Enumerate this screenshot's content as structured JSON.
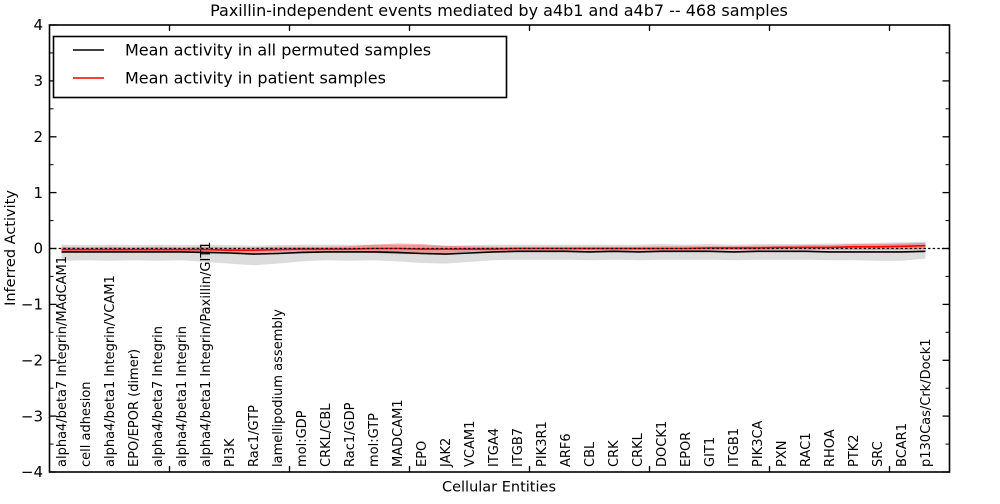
{
  "chart_data": {
    "type": "line",
    "title": "Paxillin-independent events mediated by a4b1 and a4b7 -- 468 samples",
    "xlabel": "Cellular Entities",
    "ylabel": "Inferred Activity",
    "ylim": [
      -4,
      4
    ],
    "xlim": [
      0,
      37.5
    ],
    "grid": false,
    "y_major_ticks": [
      4,
      3,
      2,
      1,
      0,
      -1,
      -2,
      -3,
      -4
    ],
    "y_minor_step": 0.5,
    "x_major_tick_positions": [
      5,
      10,
      15,
      20,
      25,
      30,
      35
    ],
    "zero_line": {
      "y": 0,
      "style": "dotted",
      "color": "#000000"
    },
    "colors": {
      "permuted_line": "#000000",
      "permuted_band": "#dcdcdc",
      "patient_line": "#ff0000",
      "patient_band": "rgba(255,0,0,0.30)",
      "frame": "#000000",
      "background": "#ffffff"
    },
    "legend": {
      "position": "upper left",
      "entries": [
        {
          "label": "Mean activity in all permuted samples",
          "color": "#000000"
        },
        {
          "label": "Mean activity in patient samples",
          "color": "#ff0000"
        }
      ]
    },
    "categories": [
      "alpha4/beta7 Integrin/MAdCAM1",
      "cell adhesion",
      "alpha4/beta1 Integrin/VCAM1",
      "EPO/EPOR (dimer)",
      "alpha4/beta7 Integrin",
      "alpha4/beta1 Integrin",
      "alpha4/beta1 Integrin/Paxillin/GIT1",
      "PI3K",
      "Rac1/GTP",
      "lamellipodium assembly",
      "mol:GDP",
      "CRKL/CBL",
      "Rac1/GDP",
      "mol:GTP",
      "MADCAM1",
      "EPO",
      "JAK2",
      "VCAM1",
      "ITGA4",
      "ITGB7",
      "PIK3R1",
      "ARF6",
      "CBL",
      "CRK",
      "CRKL",
      "DOCK1",
      "EPOR",
      "GIT1",
      "ITGB1",
      "PIK3CA",
      "PXN",
      "RAC1",
      "RHOA",
      "PTK2",
      "SRC",
      "BCAR1",
      "p130Cas/Crk/Dock1"
    ],
    "series": [
      {
        "name": "Mean activity in all permuted samples",
        "values": [
          -0.06,
          -0.06,
          -0.06,
          -0.06,
          -0.06,
          -0.06,
          -0.07,
          -0.08,
          -0.1,
          -0.09,
          -0.07,
          -0.06,
          -0.06,
          -0.06,
          -0.07,
          -0.09,
          -0.1,
          -0.08,
          -0.06,
          -0.05,
          -0.05,
          -0.05,
          -0.06,
          -0.05,
          -0.06,
          -0.05,
          -0.05,
          -0.05,
          -0.06,
          -0.05,
          -0.05,
          -0.05,
          -0.06,
          -0.06,
          -0.06,
          -0.06,
          -0.05
        ],
        "band_upper": [
          0.07,
          0.06,
          0.07,
          0.06,
          0.07,
          0.06,
          0.07,
          0.06,
          0.05,
          0.06,
          0.07,
          0.07,
          0.07,
          0.07,
          0.06,
          0.06,
          0.05,
          0.06,
          0.07,
          0.07,
          0.07,
          0.07,
          0.07,
          0.07,
          0.07,
          0.08,
          0.07,
          0.08,
          0.07,
          0.08,
          0.08,
          0.08,
          0.09,
          0.09,
          0.1,
          0.11,
          0.12
        ],
        "band_lower": [
          -0.22,
          -0.21,
          -0.22,
          -0.21,
          -0.22,
          -0.21,
          -0.24,
          -0.27,
          -0.3,
          -0.27,
          -0.23,
          -0.21,
          -0.22,
          -0.21,
          -0.23,
          -0.26,
          -0.27,
          -0.24,
          -0.21,
          -0.2,
          -0.2,
          -0.2,
          -0.21,
          -0.2,
          -0.21,
          -0.2,
          -0.2,
          -0.2,
          -0.21,
          -0.2,
          -0.2,
          -0.2,
          -0.21,
          -0.21,
          -0.22,
          -0.22,
          -0.18
        ]
      },
      {
        "name": "Mean activity in patient samples",
        "values": [
          -0.02,
          -0.02,
          -0.02,
          -0.02,
          -0.02,
          -0.02,
          -0.02,
          -0.03,
          -0.03,
          -0.02,
          -0.01,
          -0.01,
          -0.01,
          0.0,
          0.0,
          -0.01,
          -0.01,
          -0.01,
          -0.01,
          0.0,
          0.0,
          0.0,
          0.0,
          0.0,
          0.0,
          0.0,
          0.0,
          0.01,
          0.01,
          0.01,
          0.02,
          0.02,
          0.02,
          0.03,
          0.03,
          0.04,
          0.05
        ],
        "band_upper": [
          0.03,
          0.02,
          0.03,
          0.02,
          0.03,
          0.02,
          0.03,
          0.02,
          0.02,
          0.03,
          0.03,
          0.03,
          0.04,
          0.07,
          0.09,
          0.08,
          0.05,
          0.04,
          0.03,
          0.03,
          0.03,
          0.03,
          0.03,
          0.03,
          0.03,
          0.04,
          0.04,
          0.04,
          0.04,
          0.05,
          0.05,
          0.06,
          0.06,
          0.08,
          0.08,
          0.09,
          0.1
        ],
        "band_lower": [
          -0.07,
          -0.06,
          -0.07,
          -0.06,
          -0.07,
          -0.06,
          -0.07,
          -0.08,
          -0.08,
          -0.07,
          -0.06,
          -0.06,
          -0.06,
          -0.08,
          -0.1,
          -0.1,
          -0.08,
          -0.06,
          -0.05,
          -0.05,
          -0.04,
          -0.04,
          -0.04,
          -0.04,
          -0.04,
          -0.04,
          -0.04,
          -0.03,
          -0.03,
          -0.03,
          -0.02,
          -0.02,
          -0.02,
          -0.02,
          -0.02,
          -0.02,
          -0.01
        ]
      }
    ]
  }
}
